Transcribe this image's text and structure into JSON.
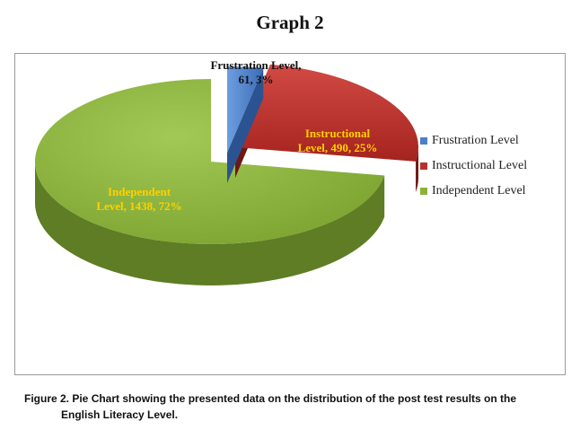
{
  "page": {
    "heading": "Graph 2",
    "caption_line1": "Figure 2. Pie Chart showing the presented data on the distribution of the post test results on the",
    "caption_line2": "English Literacy Level."
  },
  "chart_data": {
    "type": "pie",
    "title": "",
    "three_d": true,
    "legend_position": "right",
    "categories": [
      "Frustration Level",
      "Instructional Level",
      "Independent Level"
    ],
    "values": [
      61,
      490,
      1438
    ],
    "percents": [
      3,
      25,
      72
    ],
    "colors": [
      "#4a7fc6",
      "#b8302e",
      "#8ab23a"
    ],
    "data_labels": [
      {
        "lines": [
          "Frustration Level,",
          "61, 3%"
        ],
        "color": "#111111"
      },
      {
        "lines": [
          "Instructional",
          "Level, 490, 25%"
        ],
        "color": "#ffd000"
      },
      {
        "lines": [
          "Independent",
          "Level, 1438, 72%"
        ],
        "color": "#ffd000"
      }
    ]
  }
}
